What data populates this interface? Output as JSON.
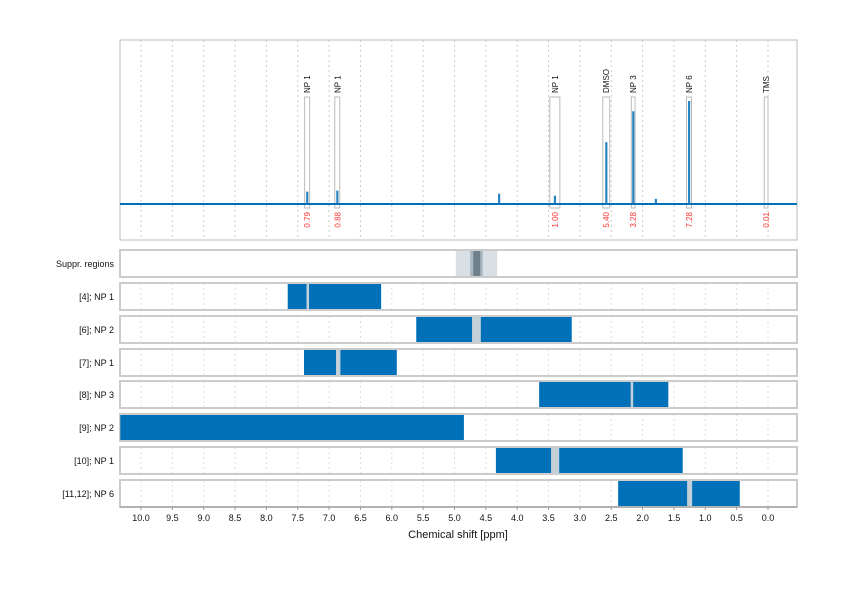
{
  "chart_data": {
    "type": "line",
    "xlabel": "Chemical shift [ppm]",
    "xlim": [
      10.33,
      -0.46
    ],
    "x_ticks": [
      "10.0",
      "9.5",
      "9.0",
      "8.5",
      "8.0",
      "7.5",
      "7.0",
      "6.5",
      "6.0",
      "5.5",
      "5.0",
      "4.5",
      "4.0",
      "3.5",
      "3.0",
      "2.5",
      "2.0",
      "1.5",
      "1.0",
      "0.5",
      "0.0"
    ],
    "grid": true,
    "colors": {
      "spectrum": "#0070b8",
      "bar": "#0070b8",
      "gap": "#c4d0d8",
      "integral": "#ff3333",
      "box": "#bbbbbb",
      "suppr_light": "#d8e0e6",
      "suppr_mid": "#a8b6c0",
      "suppr_dark": "#6e808c"
    },
    "peaks": [
      {
        "ppm": 7.35,
        "intensity": 0.12
      },
      {
        "ppm": 6.87,
        "intensity": 0.13
      },
      {
        "ppm": 4.29,
        "intensity": 0.1
      },
      {
        "ppm": 3.4,
        "intensity": 0.08
      },
      {
        "ppm": 2.58,
        "intensity": 0.6
      },
      {
        "ppm": 2.15,
        "intensity": 0.9
      },
      {
        "ppm": 1.79,
        "intensity": 0.05
      },
      {
        "ppm": 1.26,
        "intensity": 1.0
      },
      {
        "ppm": 0.03,
        "intensity": 0.0
      }
    ],
    "annotations": [
      {
        "label": "NP 1",
        "ppm": 7.35,
        "width": 0.08,
        "integral": "0.79"
      },
      {
        "label": "NP 1",
        "ppm": 6.87,
        "width": 0.08,
        "integral": "0.88"
      },
      {
        "label": "NP 1",
        "ppm": 3.4,
        "width": 0.16,
        "integral": "1.00"
      },
      {
        "label": "DMSO",
        "ppm": 2.58,
        "width": 0.11,
        "integral": "5.40"
      },
      {
        "label": "NP 3",
        "ppm": 2.15,
        "width": 0.06,
        "integral": "3.28"
      },
      {
        "label": "NP 6",
        "ppm": 1.26,
        "width": 0.08,
        "integral": "7.28"
      },
      {
        "label": "TMS",
        "ppm": 0.03,
        "width": 0.06,
        "integral": "0.01"
      }
    ],
    "suppression": {
      "label": "Suppr. regions",
      "outer": [
        4.98,
        4.32
      ],
      "mid": [
        4.75,
        4.55
      ],
      "inner": [
        4.7,
        4.59
      ]
    },
    "tracks": [
      {
        "label": "[4]; NP 1",
        "range": [
          7.66,
          6.17
        ],
        "gap": [
          7.36,
          7.32
        ]
      },
      {
        "label": "[6]; NP 2",
        "range": [
          5.61,
          3.13
        ],
        "gap": [
          4.72,
          4.58
        ]
      },
      {
        "label": "[7]; NP 1",
        "range": [
          7.4,
          5.92
        ],
        "gap": [
          6.89,
          6.82
        ]
      },
      {
        "label": "[8]; NP 3",
        "range": [
          3.65,
          1.59
        ],
        "gap": [
          2.19,
          2.15
        ]
      },
      {
        "label": "[9]; NP 2",
        "range": [
          10.33,
          4.85
        ],
        "gap": null
      },
      {
        "label": "[10]; NP 1",
        "range": [
          4.34,
          1.36
        ],
        "gap": [
          3.46,
          3.33
        ]
      },
      {
        "label": "[11,12]; NP 6",
        "range": [
          2.39,
          0.45
        ],
        "gap": [
          1.29,
          1.21
        ]
      }
    ]
  }
}
